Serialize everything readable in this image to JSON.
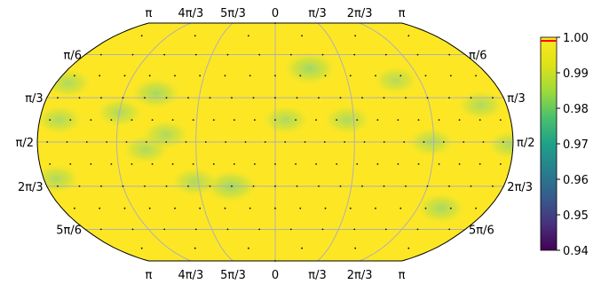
{
  "chart_data": {
    "type": "heatmap",
    "projection": "robinson",
    "title": "",
    "top_tick_labels": [
      "π",
      "4π/3",
      "5π/3",
      "0",
      "π/3",
      "2π/3",
      "π"
    ],
    "bottom_tick_labels": [
      "π",
      "4π/3",
      "5π/3",
      "0",
      "π/3",
      "2π/3",
      "π"
    ],
    "left_tick_labels": [
      "π/6",
      "π/3",
      "π/2",
      "2π/3",
      "5π/6"
    ],
    "right_tick_labels": [
      "π/6",
      "π/3",
      "π/2",
      "2π/3",
      "5π/6"
    ],
    "base_value": 1.0,
    "low_regions": [
      {
        "lon_deg": 30,
        "colat_deg": 40,
        "value": 0.985
      },
      {
        "lon_deg": 8,
        "colat_deg": 75,
        "value": 0.99
      },
      {
        "lon_deg": 55,
        "colat_deg": 75,
        "value": 0.99
      },
      {
        "lon_deg": -35,
        "colat_deg": 120,
        "value": 0.985
      },
      {
        "lon_deg": -63,
        "colat_deg": 117,
        "value": 0.99
      },
      {
        "lon_deg": -98,
        "colat_deg": 95,
        "value": 0.99
      },
      {
        "lon_deg": -83,
        "colat_deg": 85,
        "value": 0.99
      },
      {
        "lon_deg": -95,
        "colat_deg": 57,
        "value": 0.987
      },
      {
        "lon_deg": -165,
        "colat_deg": 75,
        "value": 0.99
      },
      {
        "lon_deg": -170,
        "colat_deg": 50,
        "value": 0.99
      },
      {
        "lon_deg": -170,
        "colat_deg": 115,
        "value": 0.99
      },
      {
        "lon_deg": -120,
        "colat_deg": 70,
        "value": 0.99
      },
      {
        "lon_deg": 100,
        "colat_deg": 48,
        "value": 0.992
      },
      {
        "lon_deg": 118,
        "colat_deg": 90,
        "value": 0.99
      },
      {
        "lon_deg": 140,
        "colat_deg": 135,
        "value": 0.988
      },
      {
        "lon_deg": 160,
        "colat_deg": 65,
        "value": 0.99
      },
      {
        "lon_deg": 178,
        "colat_deg": 92,
        "value": 0.99
      }
    ],
    "colorbar": {
      "colormap": "viridis",
      "min": 0.94,
      "max": 1.0,
      "tick_labels": [
        "1.00",
        "0.99",
        "0.98",
        "0.97",
        "0.96",
        "0.95",
        "0.94"
      ],
      "tick_values": [
        1.0,
        0.99,
        0.98,
        0.97,
        0.96,
        0.95,
        0.94
      ],
      "marker_value": 0.999,
      "marker_color": "#ff0000"
    },
    "grid": true
  }
}
